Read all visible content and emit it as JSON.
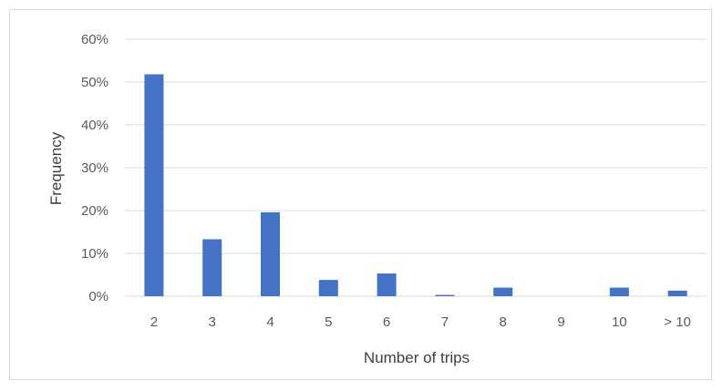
{
  "chart_data": {
    "type": "bar",
    "categories": [
      "2",
      "3",
      "4",
      "5",
      "6",
      "7",
      "8",
      "9",
      "10",
      "> 10"
    ],
    "values": [
      0.518,
      0.133,
      0.196,
      0.038,
      0.053,
      0.003,
      0.02,
      0.0,
      0.02,
      0.013
    ],
    "xlabel": "Number of trips",
    "ylabel": "Frequency",
    "ylim": [
      0,
      0.6
    ],
    "yticks": [
      "0%",
      "10%",
      "20%",
      "30%",
      "40%",
      "50%",
      "60%"
    ],
    "grid": true,
    "legend": "none",
    "bar_color": "#4472c4",
    "grid_color": "#d9d9d9"
  }
}
